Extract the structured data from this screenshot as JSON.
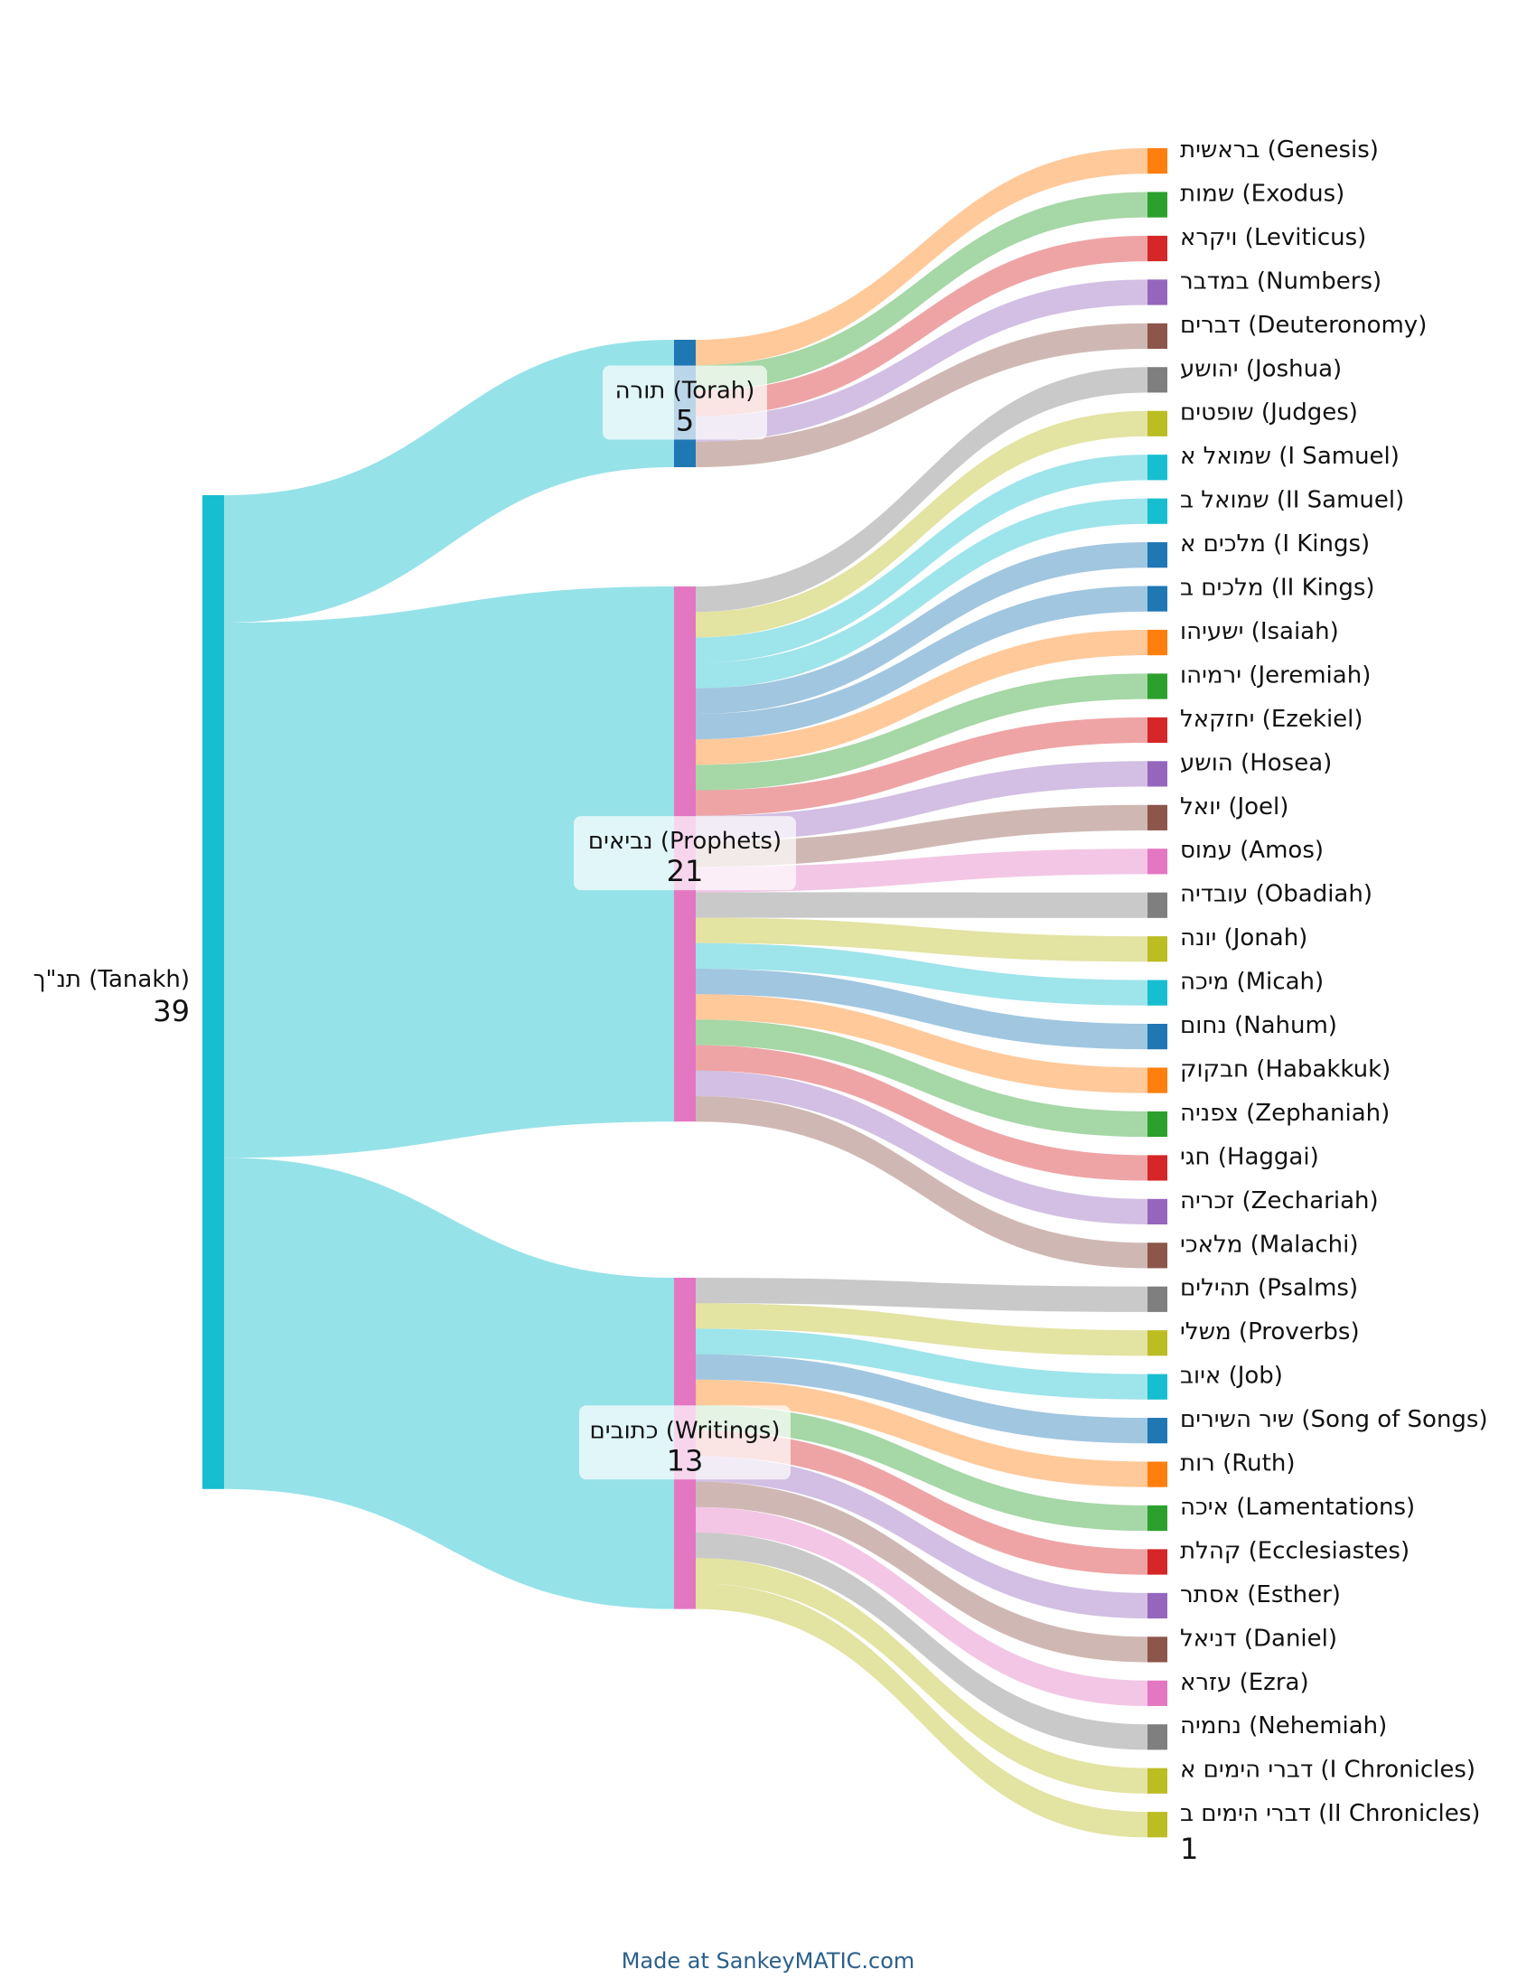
{
  "credit": "Made at SankeyMATIC.com",
  "colors": {
    "orange": "#ff7f0e",
    "green": "#2ca02c",
    "red": "#d62728",
    "purple": "#9467bd",
    "brown": "#8c564b",
    "pink": "#e377c2",
    "gray": "#7f7f7f",
    "olive": "#bcbd22",
    "cyan": "#17becf",
    "blue": "#1f77b4"
  },
  "root": {
    "label": "תנ\"ך (Tanakh)",
    "value": "39",
    "color": "#17becf"
  },
  "groups": [
    {
      "label": "תורה (Torah)",
      "value": "5",
      "color": "#1f77b4"
    },
    {
      "label": "נביאים (Prophets)",
      "value": "21",
      "color": "#e377c2"
    },
    {
      "label": "כתובים (Writings)",
      "value": "13",
      "color": "#e377c2"
    }
  ],
  "books": [
    {
      "label": "בראשית (Genesis)",
      "group": 0,
      "color": "#ff7f0e"
    },
    {
      "label": "שמות (Exodus)",
      "group": 0,
      "color": "#2ca02c"
    },
    {
      "label": "ויקרא (Leviticus)",
      "group": 0,
      "color": "#d62728"
    },
    {
      "label": "במדבר (Numbers)",
      "group": 0,
      "color": "#9467bd"
    },
    {
      "label": "דברים (Deuteronomy)",
      "group": 0,
      "color": "#8c564b"
    },
    {
      "label": "יהושע (Joshua)",
      "group": 1,
      "color": "#7f7f7f"
    },
    {
      "label": "שופטים (Judges)",
      "group": 1,
      "color": "#bcbd22"
    },
    {
      "label": "שמואל א (I Samuel)",
      "group": 1,
      "color": "#17becf"
    },
    {
      "label": "שמואל ב (II Samuel)",
      "group": 1,
      "color": "#17becf"
    },
    {
      "label": "מלכים א (I Kings)",
      "group": 1,
      "color": "#1f77b4"
    },
    {
      "label": "מלכים ב (II Kings)",
      "group": 1,
      "color": "#1f77b4"
    },
    {
      "label": "ישעיהו (Isaiah)",
      "group": 1,
      "color": "#ff7f0e"
    },
    {
      "label": "ירמיהו (Jeremiah)",
      "group": 1,
      "color": "#2ca02c"
    },
    {
      "label": "יחזקאל (Ezekiel)",
      "group": 1,
      "color": "#d62728"
    },
    {
      "label": "הושע (Hosea)",
      "group": 1,
      "color": "#9467bd"
    },
    {
      "label": "יואל (Joel)",
      "group": 1,
      "color": "#8c564b"
    },
    {
      "label": "עמוס (Amos)",
      "group": 1,
      "color": "#e377c2"
    },
    {
      "label": "עובדיה (Obadiah)",
      "group": 1,
      "color": "#7f7f7f"
    },
    {
      "label": "יונה (Jonah)",
      "group": 1,
      "color": "#bcbd22"
    },
    {
      "label": "מיכה (Micah)",
      "group": 1,
      "color": "#17becf"
    },
    {
      "label": "נחום (Nahum)",
      "group": 1,
      "color": "#1f77b4"
    },
    {
      "label": "חבקוק (Habakkuk)",
      "group": 1,
      "color": "#ff7f0e"
    },
    {
      "label": "צפניה (Zephaniah)",
      "group": 1,
      "color": "#2ca02c"
    },
    {
      "label": "חגי (Haggai)",
      "group": 1,
      "color": "#d62728"
    },
    {
      "label": "זכריה (Zechariah)",
      "group": 1,
      "color": "#9467bd"
    },
    {
      "label": "מלאכי (Malachi)",
      "group": 1,
      "color": "#8c564b"
    },
    {
      "label": "תהילים (Psalms)",
      "group": 2,
      "color": "#7f7f7f"
    },
    {
      "label": "משלי (Proverbs)",
      "group": 2,
      "color": "#bcbd22"
    },
    {
      "label": "איוב (Job)",
      "group": 2,
      "color": "#17becf"
    },
    {
      "label": "שיר השירים (Song of Songs)",
      "group": 2,
      "color": "#1f77b4"
    },
    {
      "label": "רות (Ruth)",
      "group": 2,
      "color": "#ff7f0e"
    },
    {
      "label": "איכה (Lamentations)",
      "group": 2,
      "color": "#2ca02c"
    },
    {
      "label": "קהלת (Ecclesiastes)",
      "group": 2,
      "color": "#d62728"
    },
    {
      "label": "אסתר (Esther)",
      "group": 2,
      "color": "#9467bd"
    },
    {
      "label": "דניאל (Daniel)",
      "group": 2,
      "color": "#8c564b"
    },
    {
      "label": "עזרא (Ezra)",
      "group": 2,
      "color": "#e377c2"
    },
    {
      "label": "נחמיה (Nehemiah)",
      "group": 2,
      "color": "#7f7f7f"
    },
    {
      "label": "דברי הימים א (I Chronicles)",
      "group": 2,
      "color": "#bcbd22"
    },
    {
      "label": "דברי הימים ב (II Chronicles)",
      "group": 2,
      "color": "#bcbd22"
    }
  ],
  "book_value": "1"
}
